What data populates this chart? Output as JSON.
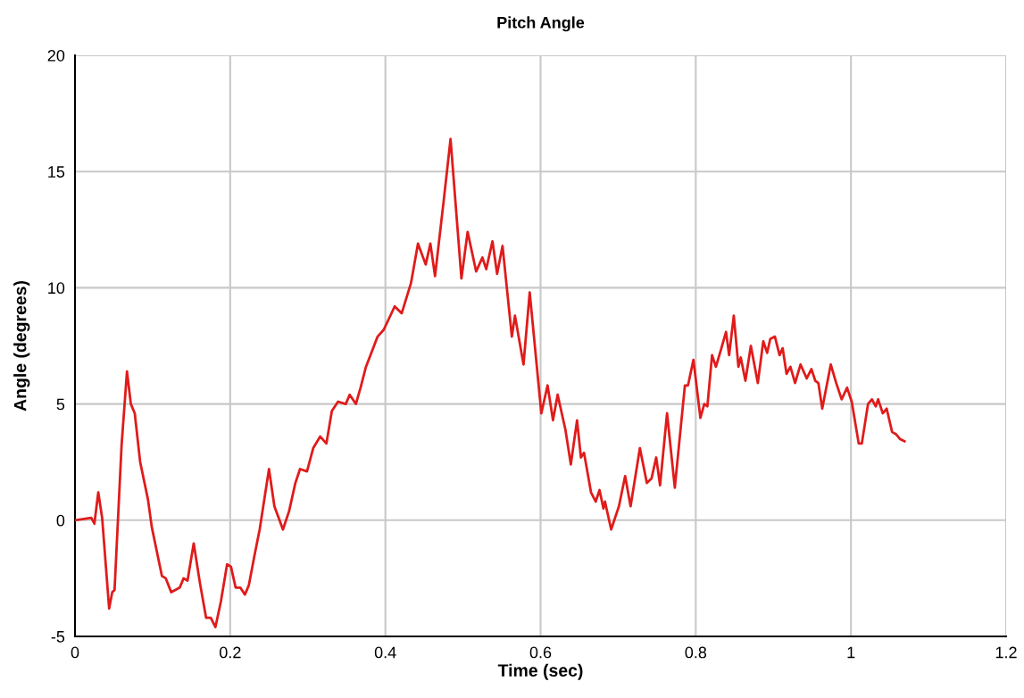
{
  "chart_data": {
    "type": "line",
    "title": "Pitch Angle",
    "xlabel": "Time (sec)",
    "ylabel": "Angle (degrees)",
    "xlim": [
      0,
      1.2
    ],
    "xticks": [
      0,
      0.2,
      0.4,
      0.6,
      0.8,
      1,
      1.2
    ],
    "ylim": [
      -5,
      20
    ],
    "yticks": [
      -5,
      0,
      5,
      10,
      15,
      20
    ],
    "grid": true,
    "marker": "none",
    "line_style": "solid",
    "series": [
      {
        "color": "#e01b1b",
        "x": [
          0,
          0.021,
          0.025,
          0.03,
          0.035,
          0.044,
          0.048,
          0.051,
          0.06,
          0.067,
          0.072,
          0.077,
          0.084,
          0.094,
          0.099,
          0.112,
          0.117,
          0.124,
          0.135,
          0.14,
          0.145,
          0.153,
          0.161,
          0.169,
          0.175,
          0.181,
          0.188,
          0.196,
          0.201,
          0.207,
          0.213,
          0.219,
          0.224,
          0.232,
          0.238,
          0.25,
          0.257,
          0.268,
          0.276,
          0.284,
          0.29,
          0.299,
          0.307,
          0.316,
          0.324,
          0.331,
          0.339,
          0.349,
          0.354,
          0.362,
          0.368,
          0.375,
          0.39,
          0.398,
          0.412,
          0.421,
          0.433,
          0.442,
          0.452,
          0.458,
          0.464,
          0.475,
          0.484,
          0.498,
          0.506,
          0.517,
          0.525,
          0.53,
          0.538,
          0.544,
          0.551,
          0.563,
          0.567,
          0.578,
          0.586,
          0.601,
          0.609,
          0.616,
          0.622,
          0.632,
          0.639,
          0.647,
          0.652,
          0.656,
          0.665,
          0.671,
          0.676,
          0.681,
          0.683,
          0.691,
          0.701,
          0.709,
          0.716,
          0.728,
          0.737,
          0.743,
          0.749,
          0.754,
          0.763,
          0.773,
          0.786,
          0.79,
          0.797,
          0.806,
          0.811,
          0.815,
          0.821,
          0.826,
          0.833,
          0.839,
          0.843,
          0.849,
          0.855,
          0.858,
          0.864,
          0.871,
          0.88,
          0.887,
          0.892,
          0.896,
          0.902,
          0.908,
          0.912,
          0.917,
          0.922,
          0.928,
          0.935,
          0.943,
          0.949,
          0.954,
          0.958,
          0.963,
          0.974,
          0.981,
          0.988,
          0.995,
          1.001,
          1.01,
          1.014,
          1.022,
          1.027,
          1.032,
          1.035,
          1.041,
          1.046,
          1.053,
          1.058,
          1.063,
          1.069
        ],
        "values": [
          0,
          0.1,
          -0.15,
          1.2,
          0.1,
          -3.8,
          -3.1,
          -3.0,
          3.2,
          6.4,
          5.0,
          4.6,
          2.5,
          0.9,
          -0.3,
          -2.4,
          -2.5,
          -3.1,
          -2.9,
          -2.5,
          -2.6,
          -1.0,
          -2.7,
          -4.2,
          -4.2,
          -4.6,
          -3.5,
          -1.9,
          -2.0,
          -2.9,
          -2.9,
          -3.2,
          -2.8,
          -1.4,
          -0.4,
          2.2,
          0.6,
          -0.4,
          0.4,
          1.6,
          2.2,
          2.1,
          3.1,
          3.6,
          3.3,
          4.7,
          5.1,
          5.0,
          5.4,
          5.0,
          5.7,
          6.6,
          7.9,
          8.2,
          9.2,
          8.9,
          10.2,
          11.9,
          11.0,
          11.9,
          10.5,
          13.7,
          16.4,
          10.4,
          12.4,
          10.7,
          11.3,
          10.8,
          12.0,
          10.6,
          11.8,
          7.9,
          8.8,
          6.7,
          9.8,
          4.6,
          5.8,
          4.3,
          5.4,
          3.9,
          2.4,
          4.3,
          2.7,
          2.9,
          1.2,
          0.8,
          1.3,
          0.5,
          0.8,
          -0.4,
          0.6,
          1.9,
          0.6,
          3.1,
          1.6,
          1.8,
          2.7,
          1.5,
          4.6,
          1.4,
          5.8,
          5.8,
          6.9,
          4.4,
          5.0,
          4.9,
          7.1,
          6.6,
          7.4,
          8.1,
          7.1,
          8.8,
          6.6,
          7.0,
          6.0,
          7.5,
          5.9,
          7.7,
          7.2,
          7.8,
          7.9,
          7.1,
          7.4,
          6.3,
          6.6,
          5.9,
          6.7,
          6.1,
          6.5,
          6.0,
          5.9,
          4.8,
          6.7,
          5.9,
          5.2,
          5.7,
          5.1,
          3.3,
          3.3,
          5.0,
          5.2,
          4.9,
          5.2,
          4.6,
          4.8,
          3.8,
          3.7,
          3.5,
          3.4
        ]
      }
    ]
  }
}
